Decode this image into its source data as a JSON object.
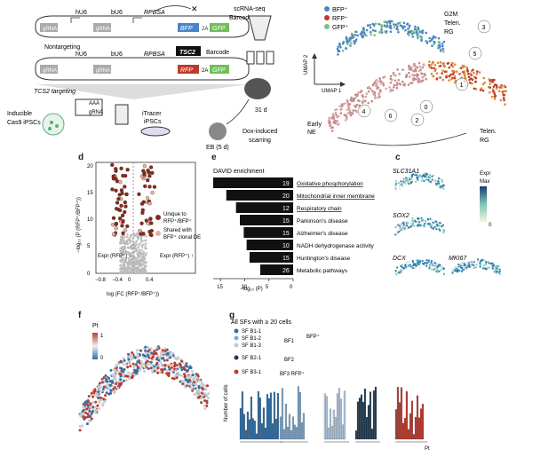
{
  "panel_labels": {
    "a": "",
    "b": "",
    "c": "c",
    "d": "d",
    "e": "e",
    "f": "f",
    "g": "g"
  },
  "panel_a": {
    "labels": {
      "hu6_1": "hU6",
      "bu6_1": "bU6",
      "rpbsa_1": "RPBSA",
      "grna_1a": "gRNA",
      "grna_1b": "gRNA",
      "bfp": "BFP",
      "t2a_1": "2A",
      "gfp_1": "GFP",
      "barcode_1": "Barcode",
      "nontargeting": "Nontargeting",
      "hu6_2": "hU6",
      "bu6_2": "bU6",
      "rpbsa_2": "RPBSA",
      "grna_2a": "gRNA",
      "grna_2b": "gRNA",
      "tsc2": "TSC2",
      "rfp": "RFP",
      "t2a_2": "2A",
      "gfp_2": "GFP",
      "barcode_2": "Barcode",
      "tsc2_targeting": "TCS2 targeting",
      "aaa": "AAA",
      "grna_small": "gRNA",
      "inducible": "Inducible",
      "cas9": "Cas9 iPSCs",
      "itracer": "iTracer",
      "ipscs": "iPSCs",
      "eb": "EB (5 d)",
      "dox1": "Dox-induced",
      "dox2": "scarring",
      "scrna": "scRNA-seq",
      "day31": "31 d"
    }
  },
  "panel_b": {
    "legend": [
      {
        "label": "BFP⁺",
        "color": "#4a86c5"
      },
      {
        "label": "RFP⁺",
        "color": "#c0392b"
      },
      {
        "label": "GFP⁺",
        "color": "#7fbf7f"
      }
    ],
    "labels": {
      "g2m": "G2M",
      "telen_rg_top1": "Telen.",
      "telen_rg_top2": "RG",
      "umap2": "UMAP 2",
      "umap1": "UMAP 1",
      "early1": "Early",
      "early2": "NE",
      "telen_rg_bot1": "Telen.",
      "telen_rg_bot2": "RG"
    },
    "clusters": [
      "0",
      "1",
      "2",
      "3",
      "4",
      "5",
      "6"
    ]
  },
  "panel_c": {
    "genes": [
      "SLC31A1",
      "SOX2",
      "DCX",
      "MKI67"
    ],
    "legend": {
      "title1": "Expr",
      "title2": "Max",
      "min": "0"
    }
  },
  "panel_d": {
    "ylabel": "−log₁₀ (P (RFP⁺/BFP⁺))",
    "xlabel": "log (FC (RFP⁺/BFP⁺))",
    "xticks": [
      "−0.8",
      "−0.4",
      "0",
      "0.4"
    ],
    "yticks": [
      "20",
      "15",
      "10",
      "5",
      "0"
    ],
    "legend": [
      {
        "label1": "Unique to",
        "label2": "RFP⁺/BFP⁺",
        "color": "#8b2a1a"
      },
      {
        "label1": "Shared with",
        "label2": "BFP⁺ clonal DE",
        "color": "#e8b09a"
      }
    ],
    "annot_left": "Expr (RFP⁺) ↓",
    "annot_right": "Expr (RFP⁺) ↑"
  },
  "panel_e": {
    "title": "DAVID enrichment",
    "xlabel": "−log₁₀ (P)",
    "xticks": [
      "15",
      "10",
      "5",
      "0"
    ],
    "chart_data": {
      "type": "bar",
      "categories": [
        "Oxidative phosphorylation",
        "Mitochondrial inner membrane",
        "Respiratory chain",
        "Parkinson's disease",
        "Alzheimer's disease",
        "NADH dehydrogenase activity",
        "Huntington's disease",
        "Metabolic pathways"
      ],
      "values": [
        16.5,
        13.8,
        11.8,
        11.0,
        10.2,
        9.6,
        9.0,
        6.8
      ],
      "bar_labels": [
        "19",
        "20",
        "12",
        "15",
        "15",
        "10",
        "15",
        "26"
      ],
      "xlim": [
        16.5,
        0
      ]
    }
  },
  "panel_f": {
    "legend": {
      "title": "Pt",
      "max": "1",
      "min": "0"
    }
  },
  "panel_g": {
    "title": "All SFs with ≥ 20 cells",
    "legend": [
      {
        "label": "SF B1-1",
        "color": "#2f6fa8"
      },
      {
        "label": "SF B1-2",
        "color": "#7fa9cf"
      },
      {
        "label": "SF B1-3",
        "color": "#b7cde3"
      },
      {
        "label": "SF B2-1",
        "color": "#1f3a54"
      },
      {
        "label": "SF B3-1",
        "color": "#c0392b"
      }
    ],
    "group_labels": {
      "bf1": "BF1",
      "bf2": "BF2",
      "bfp": "BFP⁺",
      "bf3": "BF3 RFP⁺"
    },
    "ylabel": "Number of cells",
    "xlabel": "Pt"
  }
}
